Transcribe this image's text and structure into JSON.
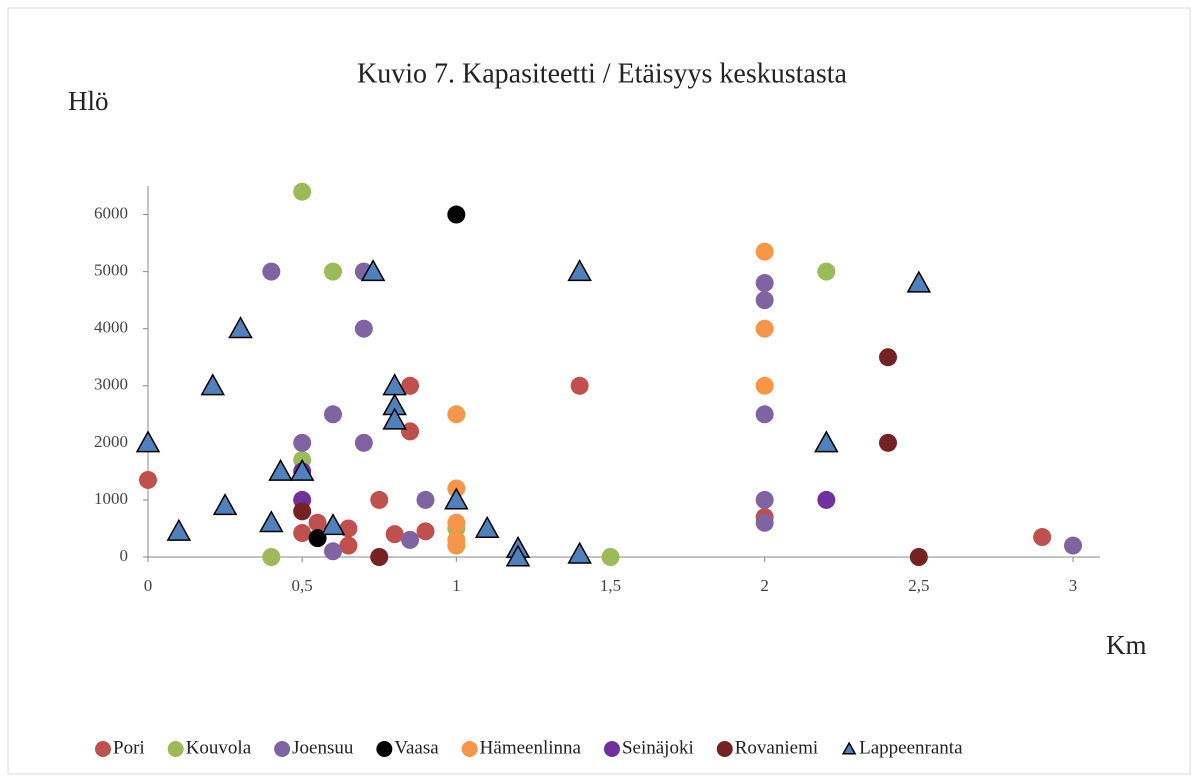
{
  "chart_data": {
    "type": "scatter",
    "title": "Kuvio 7. Kapasiteetti / Etäisyys keskustasta",
    "y_label": "Hlö",
    "x_label": "Km",
    "xlim": [
      0,
      3
    ],
    "ylim": [
      0,
      6500
    ],
    "xticks": [
      0,
      {
        "value": 0.5,
        "label": "0,5"
      },
      1,
      {
        "value": 1.5,
        "label": "1,5"
      },
      2,
      {
        "value": 2.5,
        "label": "2,5"
      },
      3
    ],
    "yticks": [
      0,
      1000,
      2000,
      3000,
      4000,
      5000,
      6000
    ],
    "grid": false,
    "legend": "bottom",
    "series": [
      {
        "name": "Pori",
        "color": "#c0504d",
        "marker": "circle",
        "x": [
          0,
          0.5,
          0.55,
          0.65,
          0.65,
          0.75,
          0.8,
          0.85,
          0.85,
          0.9,
          1.4,
          2,
          2.9
        ],
        "y": [
          1350,
          420,
          600,
          500,
          200,
          1000,
          400,
          3000,
          2200,
          450,
          3000,
          700,
          350
        ]
      },
      {
        "name": "Kouvola",
        "color": "#9bbb59",
        "marker": "circle",
        "x": [
          0.5,
          0.6,
          0.5,
          0.4,
          1,
          1.5,
          2.2
        ],
        "y": [
          6400,
          5000,
          1700,
          0,
          500,
          0,
          5000
        ]
      },
      {
        "name": "Joensuu",
        "color": "#8064a2",
        "marker": "circle",
        "x": [
          0.4,
          0.7,
          0.7,
          0.6,
          0.5,
          0.7,
          0.9,
          0.85,
          0.6,
          2,
          2,
          2,
          2,
          2,
          3
        ],
        "y": [
          5000,
          5000,
          4000,
          2500,
          2000,
          2000,
          1000,
          300,
          100,
          4800,
          4500,
          2500,
          1000,
          600,
          200
        ]
      },
      {
        "name": "Vaasa",
        "color": "#000000",
        "marker": "circle",
        "x": [
          1,
          0.55
        ],
        "y": [
          6000,
          330
        ]
      },
      {
        "name": "Hämeenlinna",
        "color": "#f79646",
        "marker": "circle",
        "x": [
          2,
          2,
          2,
          1,
          1,
          1,
          1,
          1
        ],
        "y": [
          5350,
          4000,
          3000,
          2500,
          1200,
          600,
          300,
          200
        ]
      },
      {
        "name": "Seinäjoki",
        "color": "#7030a0",
        "marker": "circle",
        "x": [
          0.5,
          0.5,
          2.2
        ],
        "y": [
          1500,
          1000,
          1000
        ]
      },
      {
        "name": "Rovaniemi",
        "color": "#772222",
        "marker": "circle",
        "x": [
          0.5,
          0.75,
          2.4,
          2.4,
          2.5
        ],
        "y": [
          800,
          0,
          3500,
          2000,
          0
        ]
      },
      {
        "name": "Lappeenranta",
        "color": "#4f81bd",
        "marker": "triangle",
        "x": [
          0,
          0.1,
          0.21,
          0.25,
          0.3,
          0.4,
          0.43,
          0.5,
          0.6,
          0.73,
          0.8,
          0.8,
          0.8,
          1,
          1.1,
          1.2,
          1.2,
          1.4,
          1.4,
          2.2,
          2.5
        ],
        "y": [
          2000,
          450,
          3000,
          900,
          4000,
          600,
          1500,
          1500,
          550,
          5000,
          3000,
          2650,
          2400,
          1000,
          500,
          150,
          0,
          50,
          5000,
          2000,
          4800
        ]
      }
    ]
  }
}
